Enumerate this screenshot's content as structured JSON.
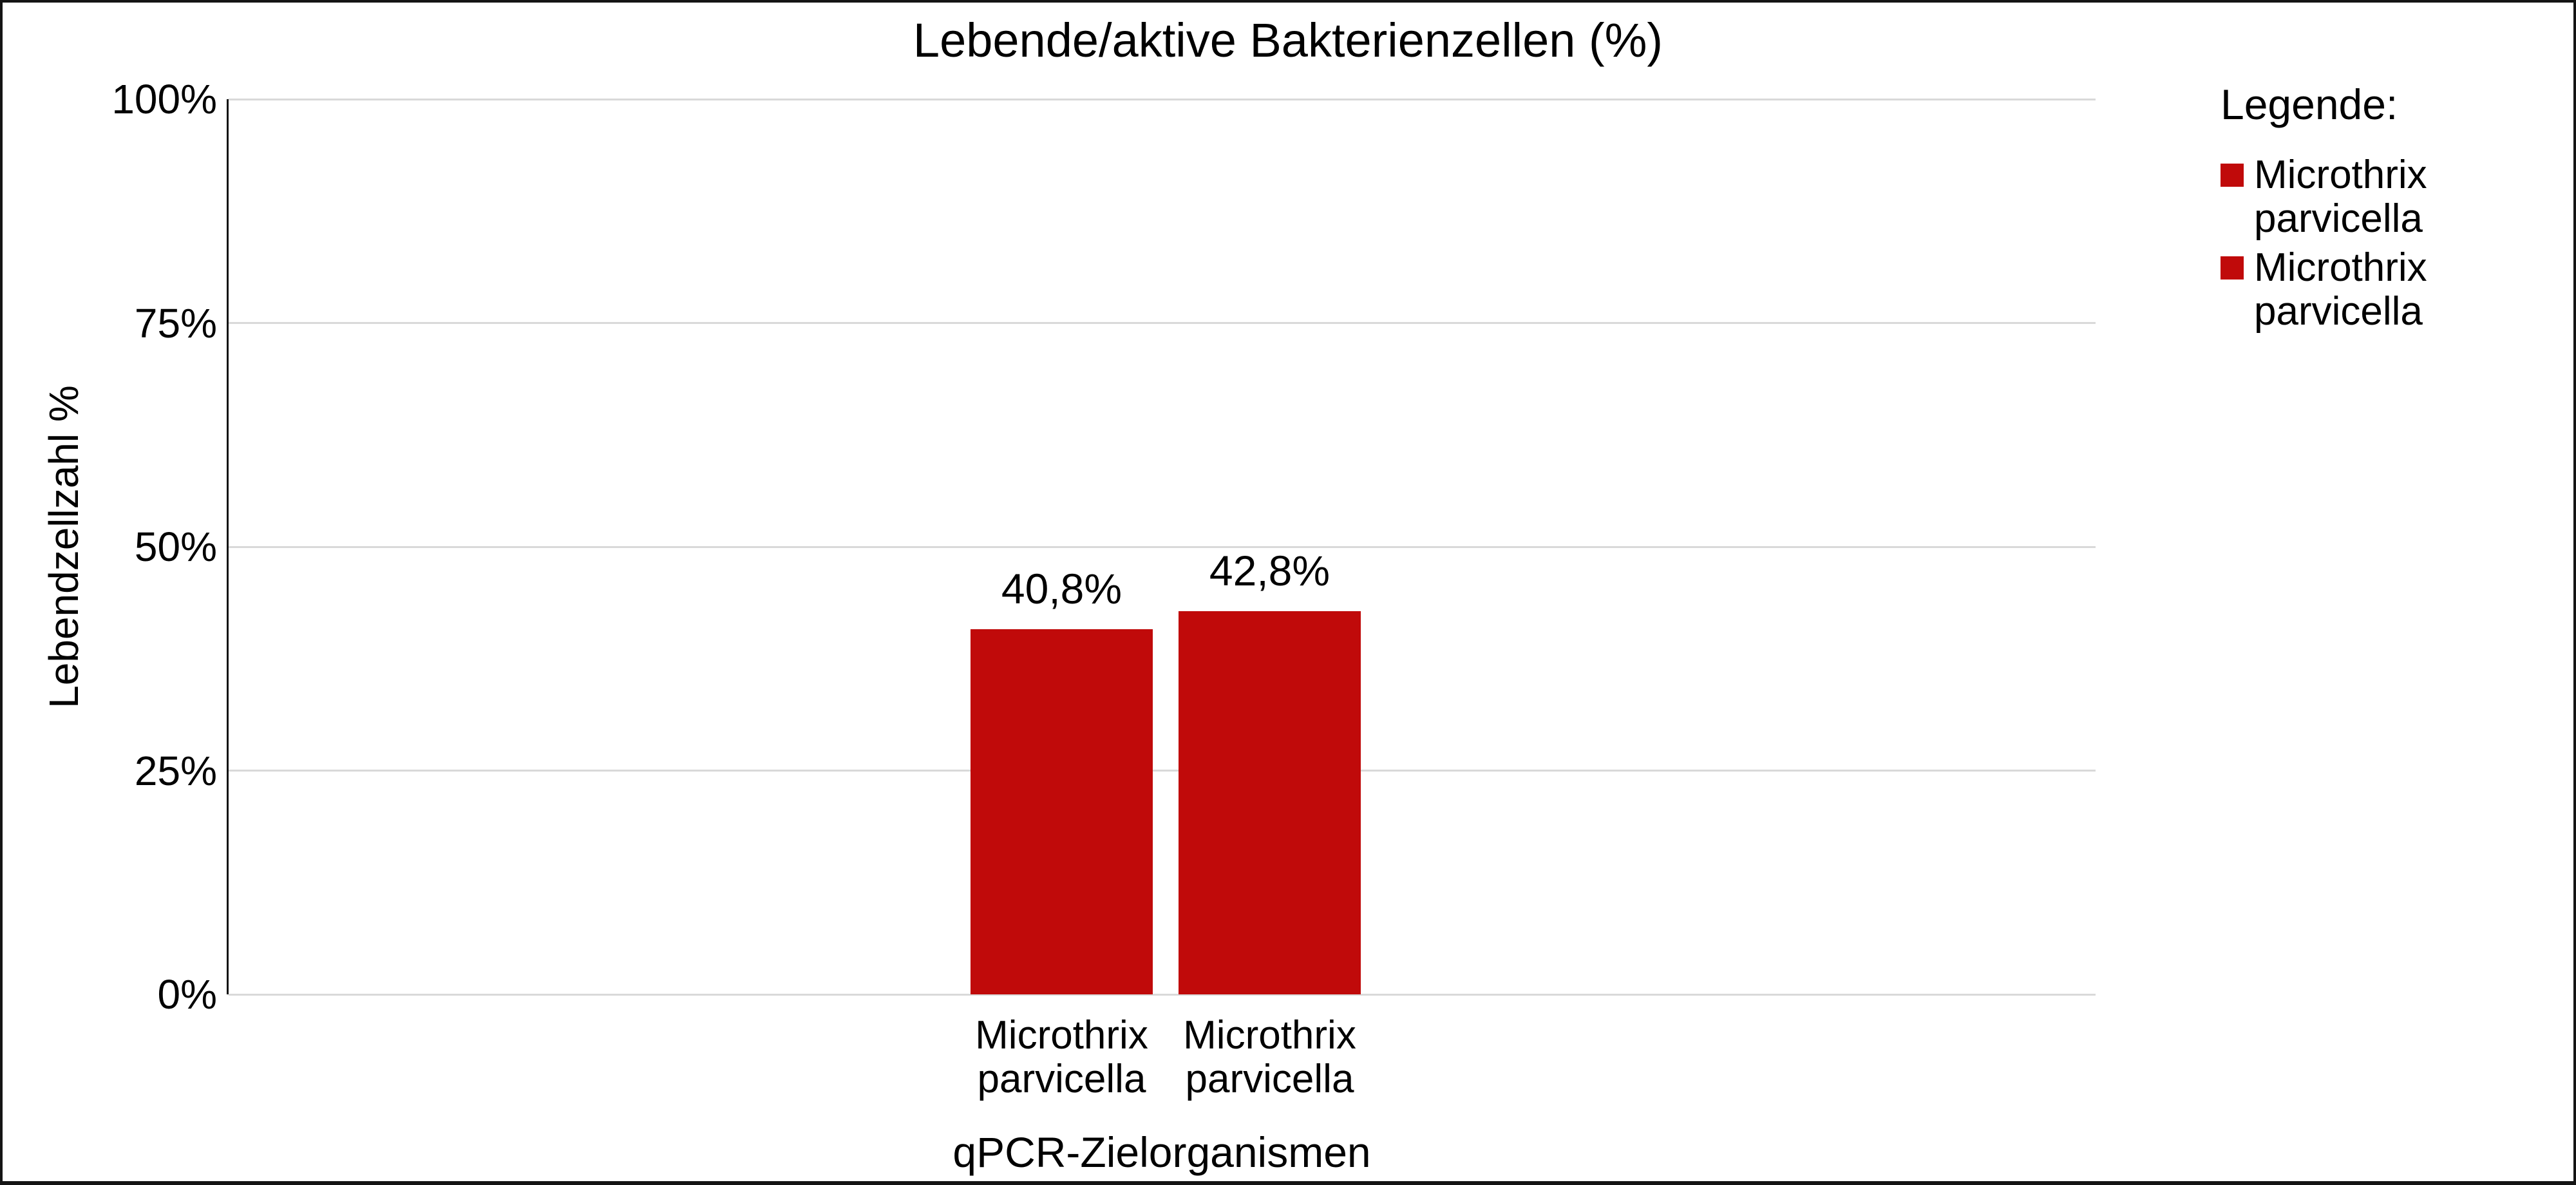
{
  "chart_data": {
    "type": "bar",
    "title": "Lebende/aktive Bakterienzellen (%)",
    "xlabel": "qPCR-Zielorganismen",
    "ylabel": "Lebendzellzahl %",
    "categories": [
      "Microthrix parvicella",
      "Microthrix parvicella"
    ],
    "values": [
      40.8,
      42.8
    ],
    "value_labels": [
      "40,8%",
      "42,8%"
    ],
    "yticks": [
      100,
      75,
      50,
      25,
      0
    ],
    "ytick_labels": [
      "100%",
      "75%",
      "50%",
      "25%",
      "0%"
    ],
    "ylim": [
      0,
      100
    ],
    "grid": true,
    "legend": {
      "title": "Legende:",
      "position": "top-right",
      "entries": [
        {
          "label": "Microthrix parvicella",
          "color": "#c00a0a"
        },
        {
          "label": "Microthrix parvicella",
          "color": "#c00a0a"
        }
      ]
    },
    "colors": {
      "bar": "#c00a0a",
      "gridline": "#d9d9d9",
      "axis": "#141414",
      "text": "#000000"
    }
  }
}
